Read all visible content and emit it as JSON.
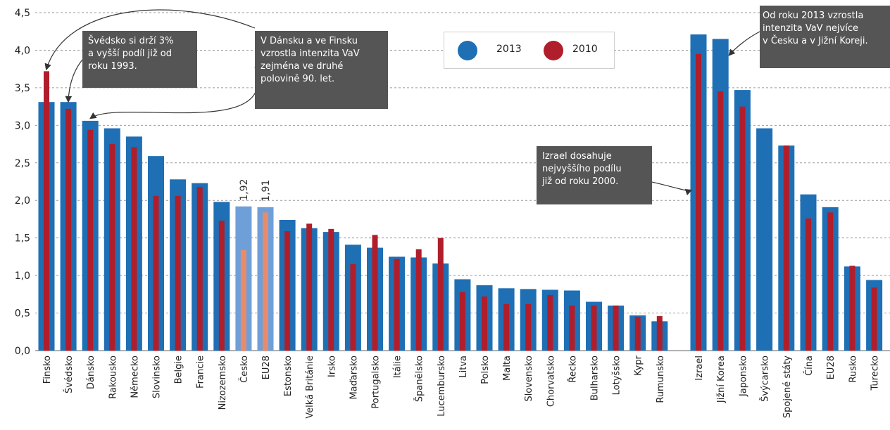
{
  "chart_data": {
    "type": "bar",
    "ylim": [
      0,
      4.5
    ],
    "yticks": [
      "0,0",
      "0,5",
      "1,0",
      "1,5",
      "2,0",
      "2,5",
      "3,0",
      "3,5",
      "4,0",
      "4,5"
    ],
    "legend": {
      "placement": "top-center",
      "entries": [
        "2013",
        "2010"
      ]
    },
    "colors": {
      "s2013": "#1f6fb5",
      "s2010": "#b01e2b",
      "h2013": "#6f9fd8",
      "h2010": "#e88b6a",
      "grid": "#9a9a9a"
    },
    "series_names": [
      "2013",
      "2010"
    ],
    "groups": [
      {
        "categories": [
          "Finsko",
          "Švédsko",
          "Dánsko",
          "Rakousko",
          "Německo",
          "Slovinsko",
          "Belgie",
          "Francie",
          "Nizozemsko",
          "Česko",
          "EU28",
          "Estonsko",
          "Velká Británie",
          "Irsko",
          "Maďarsko",
          "Portugalsko",
          "Itálie",
          "Španělsko",
          "Lucembursko",
          "Litva",
          "Polsko",
          "Malta",
          "Slovensko",
          "Chorvatsko",
          "Řecko",
          "Bulharsko",
          "Lotyšsko",
          "Kypr",
          "Rumunsko"
        ],
        "values_2013": [
          3.31,
          3.31,
          3.06,
          2.96,
          2.85,
          2.59,
          2.28,
          2.23,
          1.98,
          1.92,
          1.91,
          1.74,
          1.63,
          1.58,
          1.41,
          1.37,
          1.25,
          1.24,
          1.16,
          0.95,
          0.87,
          0.83,
          0.82,
          0.81,
          0.8,
          0.65,
          0.6,
          0.47,
          0.39
        ],
        "values_2010": [
          3.72,
          3.22,
          2.94,
          2.75,
          2.71,
          2.06,
          2.06,
          2.18,
          1.73,
          1.34,
          1.84,
          1.59,
          1.69,
          1.62,
          1.15,
          1.54,
          1.22,
          1.35,
          1.5,
          0.78,
          0.72,
          0.62,
          0.62,
          0.74,
          0.6,
          0.6,
          0.6,
          0.45,
          0.46
        ],
        "highlight": [
          "Česko",
          "EU28"
        ]
      },
      {
        "categories": [
          "Izrael",
          "Jižní Korea",
          "Japonsko",
          "Švýcarsko",
          "Spojené státy",
          "Čína",
          "EU28",
          "Rusko",
          "Turecko"
        ],
        "values_2013": [
          4.21,
          4.15,
          3.47,
          2.96,
          2.73,
          2.08,
          1.91,
          1.12,
          0.94
        ],
        "values_2010": [
          3.95,
          3.45,
          3.25,
          null,
          2.73,
          1.76,
          1.84,
          1.13,
          0.84
        ]
      }
    ],
    "data_labels": [
      {
        "category": "Česko",
        "text": "1,92"
      },
      {
        "category": "EU28",
        "text": "1,91"
      }
    ],
    "annotations": [
      {
        "id": "a1",
        "lines": [
          "Švédsko si drží 3%",
          "a vyšší podíl již od",
          "roku 1993."
        ]
      },
      {
        "id": "a2",
        "lines": [
          "V Dánsku a ve Finsku",
          "vzrostla intenzita VaV",
          "zejména ve druhé",
          "polovině 90. let."
        ]
      },
      {
        "id": "a3",
        "lines": [
          "Izrael dosahuje",
          "nejvyššího podílu",
          "již od roku 2000."
        ]
      },
      {
        "id": "a4",
        "lines": [
          "Od roku 2013 vzrostla",
          "intenzita VaV nejvíce",
          "v Česku a v Jižní Koreji."
        ]
      }
    ]
  }
}
